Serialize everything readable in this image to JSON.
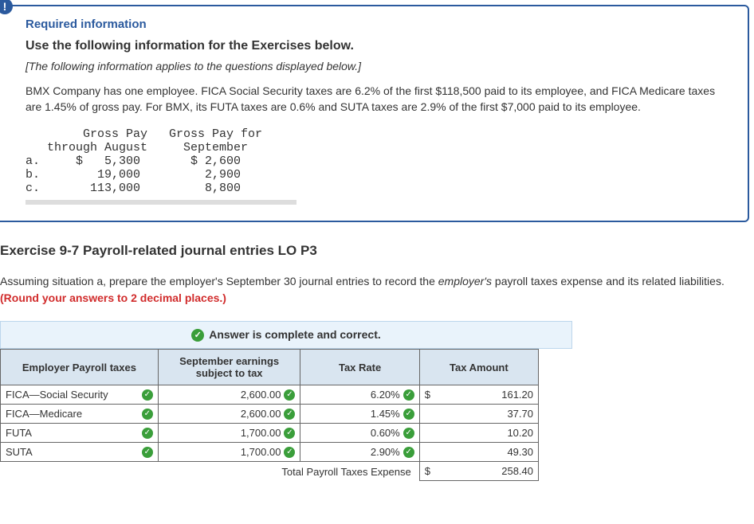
{
  "info_icon": "!",
  "required_info_label": "Required information",
  "use_following": "Use the following information for the Exercises below.",
  "italic_note": "[The following information applies to the questions displayed below.]",
  "body_text": "BMX Company has one employee. FICA Social Security taxes are 6.2% of the first $118,500 paid to its employee, and FICA Medicare taxes are 1.45% of gross pay. For BMX, its FUTA taxes are 0.6% and SUTA taxes are 2.9% of the first $7,000 paid to its employee.",
  "gross_pay_table": {
    "header1_line1": "Gross Pay",
    "header1_line2": "through August",
    "header2_line1": "Gross Pay for",
    "header2_line2": "September",
    "rows": [
      {
        "label": "a.",
        "aug": "$   5,300",
        "sep": "$ 2,600"
      },
      {
        "label": "b.",
        "aug": "   19,000",
        "sep": "  2,900"
      },
      {
        "label": "c.",
        "aug": "  113,000",
        "sep": "  8,800"
      }
    ]
  },
  "exercise_title": "Exercise 9-7 Payroll-related journal entries LO P3",
  "exercise_text_1": "Assuming situation a, prepare the employer's September 30 journal entries to record the ",
  "exercise_text_em": "employer's",
  "exercise_text_2": " payroll taxes expense and its related liabilities. ",
  "exercise_text_red": "(Round your answers to 2 decimal places.)",
  "answer_banner": "Answer is complete and correct.",
  "payroll_table": {
    "headers": {
      "label": "Employer Payroll taxes",
      "earnings_line1": "September earnings",
      "earnings_line2": "subject to tax",
      "rate": "Tax Rate",
      "amount": "Tax Amount"
    },
    "rows": [
      {
        "label": "FICA—Social Security",
        "earnings": "2,600.00",
        "rate": "6.20%",
        "dollar": "$",
        "amount": "161.20"
      },
      {
        "label": "FICA—Medicare",
        "earnings": "2,600.00",
        "rate": "1.45%",
        "dollar": "",
        "amount": "37.70"
      },
      {
        "label": "FUTA",
        "earnings": "1,700.00",
        "rate": "0.60%",
        "dollar": "",
        "amount": "10.20"
      },
      {
        "label": "SUTA",
        "earnings": "1,700.00",
        "rate": "2.90%",
        "dollar": "",
        "amount": "49.30"
      }
    ],
    "total_label": "Total Payroll Taxes Expense",
    "total_dollar": "$",
    "total_amount": "258.40"
  },
  "colors": {
    "box_border": "#2b5a9e",
    "banner_bg": "#e9f3fb",
    "header_bg": "#d9e5f0",
    "check_green": "#3a9e3a",
    "red": "#d12c2c"
  }
}
